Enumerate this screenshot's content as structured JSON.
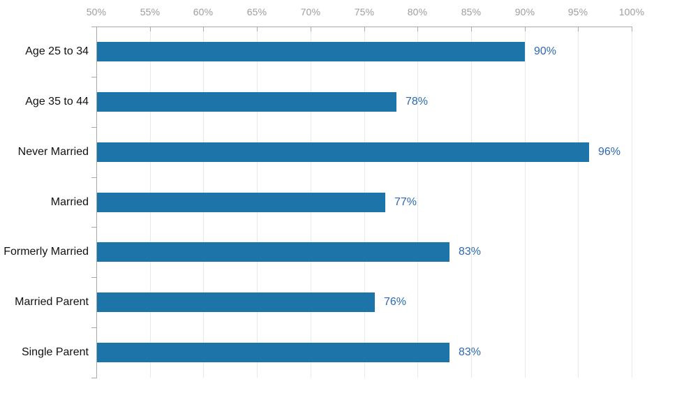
{
  "chart_data": {
    "type": "bar",
    "orientation": "horizontal",
    "title": "",
    "xlabel": "",
    "ylabel": "",
    "categories": [
      "Age 25 to 34",
      "Age 35 to 44",
      "Never Married",
      "Married",
      "Formerly Married",
      "Married Parent",
      "Single Parent"
    ],
    "values": [
      90,
      78,
      96,
      77,
      83,
      76,
      83
    ],
    "value_labels": [
      "90%",
      "78%",
      "96%",
      "77%",
      "83%",
      "76%",
      "83%"
    ],
    "x_axis": {
      "position": "top",
      "min": 50,
      "max": 100,
      "step": 5,
      "tick_labels": [
        "50%",
        "55%",
        "60%",
        "65%",
        "70%",
        "75%",
        "80%",
        "85%",
        "90%",
        "95%",
        "100%"
      ]
    },
    "grid": true,
    "legend": null
  },
  "colors": {
    "bar": "#1c74a8",
    "value_label": "#2d68b0",
    "tick_label": "#9d9d9d",
    "axis_line": "#aaaaaa",
    "gridline": "#e9e9e9",
    "category_label": "#111111"
  }
}
